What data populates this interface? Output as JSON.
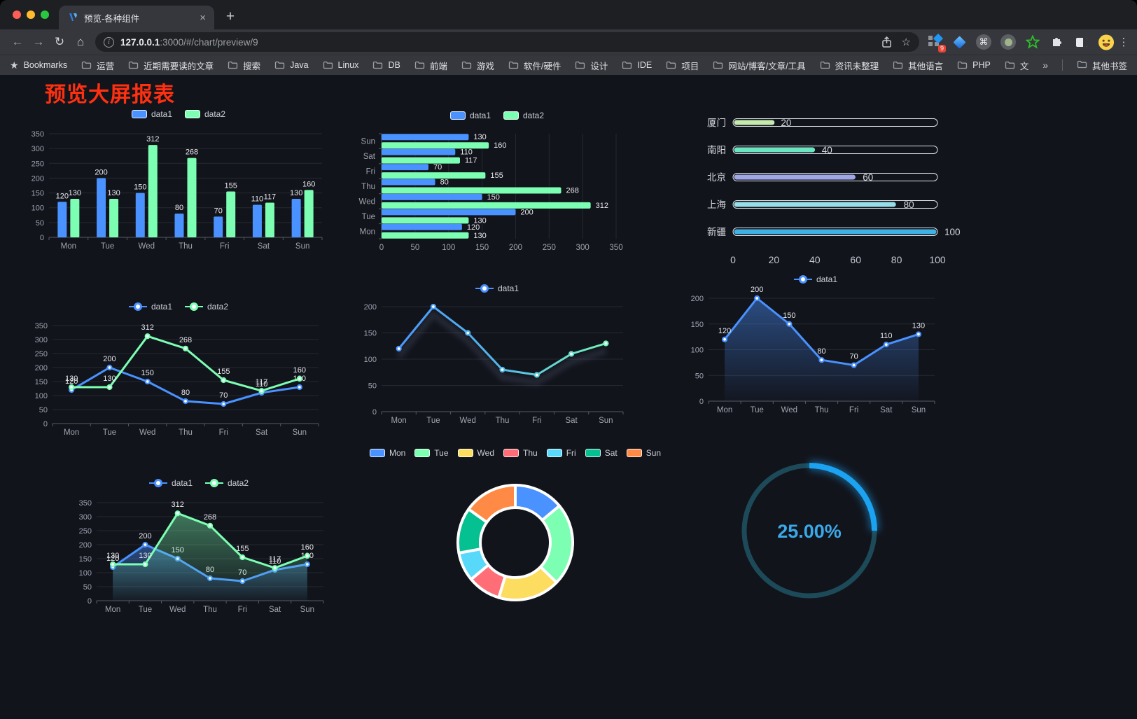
{
  "browser": {
    "tab_title": "预览-各种组件",
    "url_host": "127.0.0.1",
    "url_rest": ":3000/#/chart/preview/9",
    "bookmarks_label": "Bookmarks",
    "bookmark_folders": [
      "运营",
      "近期需要读的文章",
      "搜索",
      "Java",
      "Linux",
      "DB",
      "前端",
      "游戏",
      "软件/硬件",
      "设计",
      "IDE",
      "项目",
      "网站/博客/文章/工具",
      "资讯未整理",
      "其他语言",
      "PHP",
      "文件服务器"
    ],
    "other_bookmarks": "其他书签",
    "extension_badge": "9",
    "glyphs": {
      "close": "×",
      "new_tab": "+",
      "back": "←",
      "forward": "→",
      "reload": "↻",
      "home": "⌂",
      "star": "☆",
      "bookmarks_star": "★",
      "overflow": "»",
      "kebab": "⋮",
      "command": "⌘"
    }
  },
  "page": {
    "title": "预览大屏报表"
  },
  "chart_data": [
    {
      "type": "bar",
      "categories": [
        "Mon",
        "Tue",
        "Wed",
        "Thu",
        "Fri",
        "Sat",
        "Sun"
      ],
      "series": [
        {
          "name": "data1",
          "color": "#4992ff",
          "values": [
            120,
            200,
            150,
            80,
            70,
            110,
            130
          ]
        },
        {
          "name": "data2",
          "color": "#7cffb2",
          "values": [
            130,
            130,
            312,
            268,
            155,
            117,
            160
          ]
        }
      ],
      "ylim": [
        0,
        350
      ],
      "yticks": [
        0,
        50,
        100,
        150,
        200,
        250,
        300,
        350
      ],
      "legend": {
        "icon": "rect",
        "items": [
          {
            "label": "data1",
            "color": "#4992ff"
          },
          {
            "label": "data2",
            "color": "#7cffb2"
          }
        ]
      }
    },
    {
      "type": "hbar",
      "categories": [
        "Mon",
        "Tue",
        "Wed",
        "Thu",
        "Fri",
        "Sat",
        "Sun"
      ],
      "series": [
        {
          "name": "data1",
          "color": "#4992ff",
          "values": [
            120,
            200,
            150,
            80,
            70,
            110,
            130
          ]
        },
        {
          "name": "data2",
          "color": "#7cffb2",
          "values": [
            130,
            130,
            312,
            268,
            155,
            117,
            160
          ]
        }
      ],
      "xlim": [
        0,
        350
      ],
      "xticks": [
        0,
        50,
        100,
        150,
        200,
        250,
        300,
        350
      ],
      "legend": {
        "icon": "rect",
        "items": [
          {
            "label": "data1",
            "color": "#4992ff"
          },
          {
            "label": "data2",
            "color": "#7cffb2"
          }
        ]
      }
    },
    {
      "type": "progress",
      "categories": [
        "厦门",
        "南阳",
        "北京",
        "上海",
        "新疆"
      ],
      "values": [
        20,
        40,
        60,
        80,
        100
      ],
      "colors": [
        "#c4ebad",
        "#6be6c1",
        "#a0a7e6",
        "#96dee8",
        "#3fb1e3"
      ],
      "xlim": [
        0,
        100
      ],
      "xticks": [
        0,
        20,
        40,
        60,
        80,
        100
      ]
    },
    {
      "type": "line",
      "categories": [
        "Mon",
        "Tue",
        "Wed",
        "Thu",
        "Fri",
        "Sat",
        "Sun"
      ],
      "series": [
        {
          "name": "data1",
          "color": "#4992ff",
          "values": [
            120,
            200,
            150,
            80,
            70,
            110,
            130
          ]
        },
        {
          "name": "data2",
          "color": "#7cffb2",
          "values": [
            130,
            130,
            312,
            268,
            155,
            117,
            160
          ]
        }
      ],
      "ylim": [
        0,
        350
      ],
      "yticks": [
        0,
        50,
        100,
        150,
        200,
        250,
        300,
        350
      ],
      "show_labels": true,
      "legend": {
        "icon": "line",
        "items": [
          {
            "label": "data1",
            "color": "#4992ff"
          },
          {
            "label": "data2",
            "color": "#7cffb2"
          }
        ]
      }
    },
    {
      "type": "line",
      "categories": [
        "Mon",
        "Tue",
        "Wed",
        "Thu",
        "Fri",
        "Sat",
        "Sun"
      ],
      "series": [
        {
          "name": "data1",
          "color": "#4992ff",
          "values": [
            120,
            200,
            150,
            80,
            70,
            110,
            130
          ]
        }
      ],
      "gradient": [
        "#4992ff",
        "#53b9e8",
        "#7cffb2"
      ],
      "shadow": true,
      "ylim": [
        0,
        200
      ],
      "yticks": [
        0,
        50,
        100,
        150,
        200
      ],
      "show_labels": false,
      "legend": {
        "icon": "line",
        "items": [
          {
            "label": "data1",
            "color": "#4992ff"
          }
        ]
      }
    },
    {
      "type": "line",
      "categories": [
        "Mon",
        "Tue",
        "Wed",
        "Thu",
        "Fri",
        "Sat",
        "Sun"
      ],
      "series": [
        {
          "name": "data1",
          "color": "#4992ff",
          "values": [
            120,
            200,
            150,
            80,
            70,
            110,
            130
          ]
        }
      ],
      "area": true,
      "ylim": [
        0,
        200
      ],
      "yticks": [
        0,
        50,
        100,
        150,
        200
      ],
      "show_labels": true,
      "legend": {
        "icon": "line",
        "items": [
          {
            "label": "data1",
            "color": "#4992ff"
          }
        ]
      }
    },
    {
      "type": "line",
      "categories": [
        "Mon",
        "Tue",
        "Wed",
        "Thu",
        "Fri",
        "Sat",
        "Sun"
      ],
      "series": [
        {
          "name": "data1",
          "color": "#4992ff",
          "values": [
            120,
            200,
            150,
            80,
            70,
            110,
            130
          ]
        },
        {
          "name": "data2",
          "color": "#7cffb2",
          "values": [
            130,
            130,
            312,
            268,
            155,
            117,
            160
          ]
        }
      ],
      "area": true,
      "ylim": [
        0,
        350
      ],
      "yticks": [
        0,
        50,
        100,
        150,
        200,
        250,
        300,
        350
      ],
      "show_labels": true,
      "legend": {
        "icon": "line",
        "items": [
          {
            "label": "data1",
            "color": "#4992ff"
          },
          {
            "label": "data2",
            "color": "#7cffb2"
          }
        ]
      }
    },
    {
      "type": "pie",
      "categories": [
        "Mon",
        "Tue",
        "Wed",
        "Thu",
        "Fri",
        "Sat",
        "Sun"
      ],
      "values": [
        120,
        200,
        150,
        80,
        70,
        110,
        130
      ],
      "colors": [
        "#4992ff",
        "#7cffb2",
        "#fddd60",
        "#ff6e76",
        "#58d9f9",
        "#05c091",
        "#ff8a45"
      ],
      "legend": {
        "icon": "rect",
        "items": [
          {
            "label": "Mon",
            "color": "#4992ff"
          },
          {
            "label": "Tue",
            "color": "#7cffb2"
          },
          {
            "label": "Wed",
            "color": "#fddd60"
          },
          {
            "label": "Thu",
            "color": "#ff6e76"
          },
          {
            "label": "Fri",
            "color": "#58d9f9"
          },
          {
            "label": "Sat",
            "color": "#05c091"
          },
          {
            "label": "Sun",
            "color": "#ff8a45"
          }
        ]
      }
    },
    {
      "type": "gauge",
      "value": 25,
      "label": "25.00%",
      "color": "#1ba2f1",
      "track_color": "#1d4a59"
    }
  ]
}
